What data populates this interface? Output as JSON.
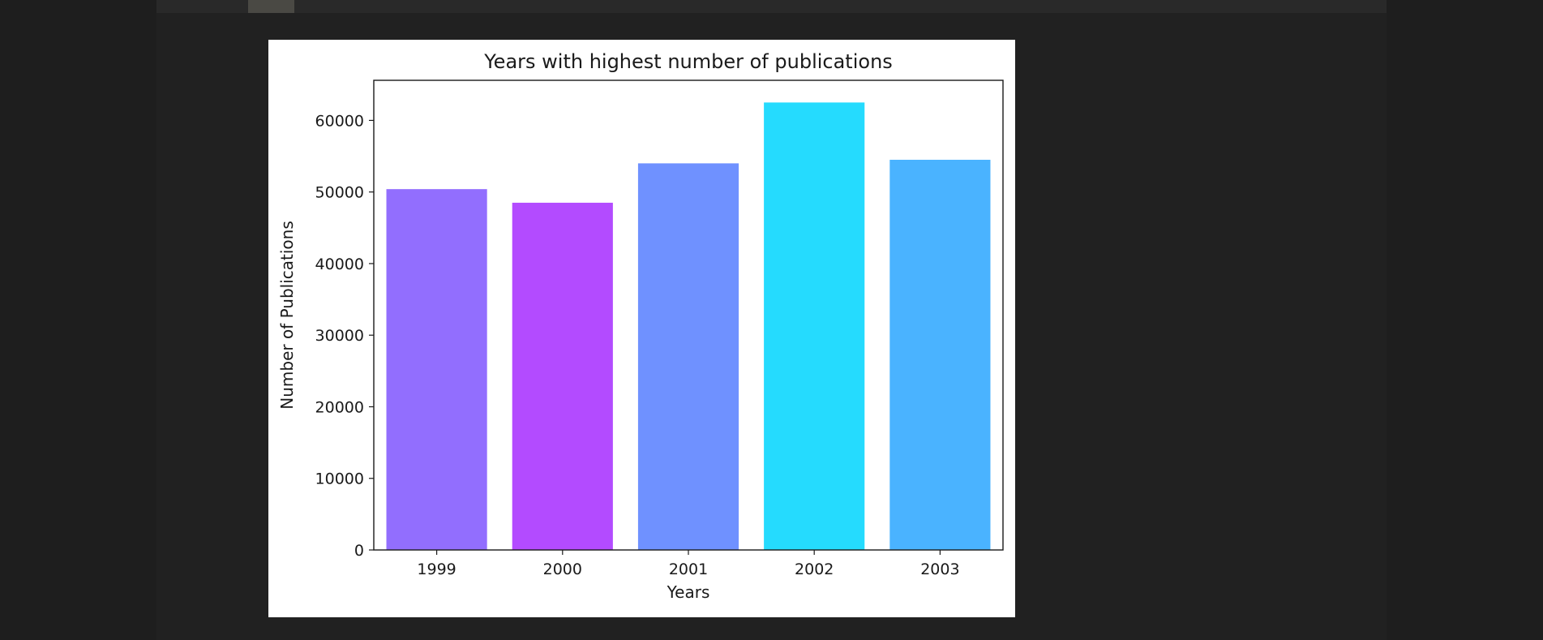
{
  "chart_data": {
    "type": "bar",
    "title": "Years with highest number of publications",
    "xlabel": "Years",
    "ylabel": "Number of Publications",
    "categories": [
      "1999",
      "2000",
      "2001",
      "2002",
      "2003"
    ],
    "values": [
      50400,
      48500,
      54000,
      62500,
      54500
    ],
    "colors": [
      "#926efe",
      "#b34bff",
      "#6f91ff",
      "#25dbfe",
      "#4ab3ff"
    ],
    "ylim": [
      0,
      65600
    ],
    "yticks": [
      0,
      10000,
      20000,
      30000,
      40000,
      50000,
      60000
    ],
    "grid": false,
    "legend": "none"
  }
}
